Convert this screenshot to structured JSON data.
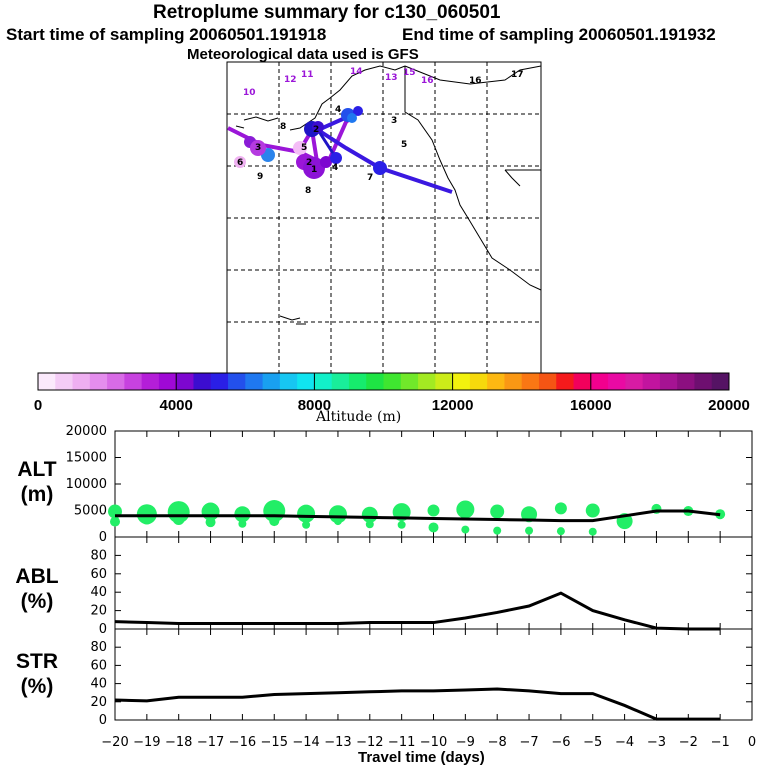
{
  "header": {
    "title": "Retroplume summary for c130_060501",
    "start_label": "Start time of sampling 20060501.191918",
    "end_label": "End time of sampling 20060501.191932",
    "met_label": "Meteorological data used is GFS"
  },
  "colors": {
    "alt_marker": "#22ee66",
    "line": "#000000",
    "traj_purple": "#9b16d8",
    "traj_blue": "#3a18e0",
    "traj_navy": "#1f14c6"
  },
  "map": {
    "day_labels": [
      {
        "text": "10",
        "color": "#9b16d8"
      },
      {
        "text": "11",
        "color": "#9b16d8"
      },
      {
        "text": "12",
        "color": "#9b16d8"
      },
      {
        "text": "14",
        "color": "#9b16d8"
      },
      {
        "text": "13",
        "color": "#9b16d8"
      },
      {
        "text": "15",
        "color": "#9b16d8"
      },
      {
        "text": "16",
        "color": "#9b16d8"
      },
      {
        "text": "16",
        "color": "#000000"
      },
      {
        "text": "17",
        "color": "#000000"
      },
      {
        "text": "8",
        "color": "#000000"
      },
      {
        "text": "3",
        "color": "#000000"
      },
      {
        "text": "4",
        "color": "#000000"
      },
      {
        "text": "5",
        "color": "#000000"
      },
      {
        "text": "5",
        "color": "#000000"
      },
      {
        "text": "9",
        "color": "#000000"
      },
      {
        "text": "8",
        "color": "#000000"
      },
      {
        "text": "7",
        "color": "#000000"
      },
      {
        "text": "6",
        "color": "#000000"
      },
      {
        "text": "4",
        "color": "#000000"
      },
      {
        "text": "3",
        "color": "#000000"
      },
      {
        "text": "2",
        "color": "#000000"
      },
      {
        "text": "1",
        "color": "#000000"
      },
      {
        "text": "2",
        "color": "#000000"
      }
    ]
  },
  "colorbar": {
    "label": "Altitude (m)",
    "ticks": [
      "0",
      "4000",
      "8000",
      "12000",
      "16000",
      "20000"
    ],
    "range": [
      0,
      20000
    ],
    "colors": [
      "#fbeafc",
      "#f4ccf6",
      "#eeaff1",
      "#e48ded",
      "#d86be6",
      "#c742df",
      "#b41ed8",
      "#9f09d6",
      "#7d07d0",
      "#3c0dd0",
      "#2a1fe6",
      "#2350ec",
      "#1f78f0",
      "#19a0f0",
      "#17c6f2",
      "#10e4f0",
      "#12f0c9",
      "#19ee9a",
      "#16ec6d",
      "#1ee444",
      "#3fe630",
      "#71e82a",
      "#a3ea22",
      "#ccec19",
      "#f2f20e",
      "#f6d90c",
      "#fdb812",
      "#fa9814",
      "#fa7714",
      "#f55514",
      "#f51a1c",
      "#f2005c",
      "#f2008e",
      "#e90aa3",
      "#d81ba4",
      "#c2149f",
      "#a61393",
      "#8c0f80",
      "#6e0f70",
      "#551364"
    ]
  },
  "chart_data": [
    {
      "type": "scatter",
      "title": "ALT (m)",
      "ylabel_line1": "ALT",
      "ylabel_line2": "(m)",
      "xlim": [
        -20,
        0
      ],
      "ylim": [
        0,
        20000
      ],
      "yticks": [
        "20000",
        "15000",
        "10000",
        "5000",
        "0"
      ],
      "series": [
        {
          "name": "plume points",
          "color": "#22ee66",
          "x": [
            -20,
            -20,
            -19,
            -19,
            -18,
            -18,
            -17,
            -17,
            -16,
            -16,
            -15,
            -15,
            -14,
            -14,
            -13,
            -13,
            -12,
            -12,
            -11,
            -11,
            -10,
            -10,
            -9,
            -9,
            -8,
            -8,
            -7,
            -7,
            -6,
            -6,
            -5,
            -5,
            -4,
            -3,
            -2,
            -1
          ],
          "y": [
            4800,
            2900,
            4300,
            3500,
            4700,
            3400,
            4800,
            2800,
            4300,
            2500,
            4900,
            3000,
            4400,
            2300,
            4300,
            3000,
            4200,
            2400,
            4700,
            2300,
            5000,
            1800,
            5200,
            1400,
            4800,
            1200,
            4300,
            1200,
            5400,
            1100,
            5000,
            1000,
            3000,
            5300,
            4900,
            4300
          ],
          "size": [
            7,
            5,
            10,
            6,
            11,
            6,
            9,
            5,
            8,
            4,
            11,
            5,
            9,
            4,
            9,
            4,
            8,
            4,
            9,
            4,
            6,
            5,
            9,
            4,
            7,
            4,
            8,
            4,
            6,
            4,
            7,
            4,
            8,
            5,
            5,
            5
          ]
        },
        {
          "name": "mean altitude",
          "color": "#000000",
          "x": [
            -20,
            -19,
            -18,
            -17,
            -16,
            -15,
            -14,
            -13,
            -12,
            -11,
            -10,
            -9,
            -8,
            -7,
            -6,
            -5,
            -4,
            -3,
            -2,
            -1
          ],
          "y": [
            4000,
            4000,
            4000,
            4000,
            4000,
            4000,
            3900,
            3800,
            3700,
            3600,
            3500,
            3400,
            3300,
            3200,
            3100,
            3100,
            4000,
            4900,
            4900,
            4200
          ]
        }
      ]
    },
    {
      "type": "line",
      "title": "ABL (%)",
      "ylabel_line1": "ABL",
      "ylabel_line2": "(%)",
      "xlim": [
        -20,
        0
      ],
      "ylim": [
        0,
        100
      ],
      "yticks": [
        "80",
        "60",
        "40",
        "20",
        "0"
      ],
      "x": [
        -20,
        -19,
        -18,
        -17,
        -16,
        -15,
        -14,
        -13,
        -12,
        -11,
        -10,
        -9,
        -8,
        -7,
        -6,
        -5,
        -4,
        -3,
        -2,
        -1
      ],
      "values": [
        8,
        7,
        6,
        6,
        6,
        6,
        6,
        6,
        7,
        7,
        7,
        12,
        18,
        25,
        39,
        20,
        10,
        1,
        0,
        0
      ]
    },
    {
      "type": "line",
      "title": "STR (%)",
      "ylabel_line1": "STR",
      "ylabel_line2": "(%)",
      "xlim": [
        -20,
        0
      ],
      "ylim": [
        0,
        100
      ],
      "yticks": [
        "80",
        "60",
        "40",
        "20",
        "0"
      ],
      "xlabel": "Travel time (days)",
      "xticks": [
        "−20",
        "−19",
        "−18",
        "−17",
        "−16",
        "−15",
        "−14",
        "−13",
        "−12",
        "−11",
        "−10",
        "−9",
        "−8",
        "−7",
        "−6",
        "−5",
        "−4",
        "−3",
        "−2",
        "−1",
        "0"
      ],
      "x": [
        -20,
        -19,
        -18,
        -17,
        -16,
        -15,
        -14,
        -13,
        -12,
        -11,
        -10,
        -9,
        -8,
        -7,
        -6,
        -5,
        -4,
        -3,
        -2,
        -1
      ],
      "values": [
        22,
        21,
        25,
        25,
        25,
        28,
        29,
        30,
        31,
        32,
        32,
        33,
        34,
        32,
        29,
        29,
        16,
        1,
        1,
        1
      ]
    }
  ]
}
